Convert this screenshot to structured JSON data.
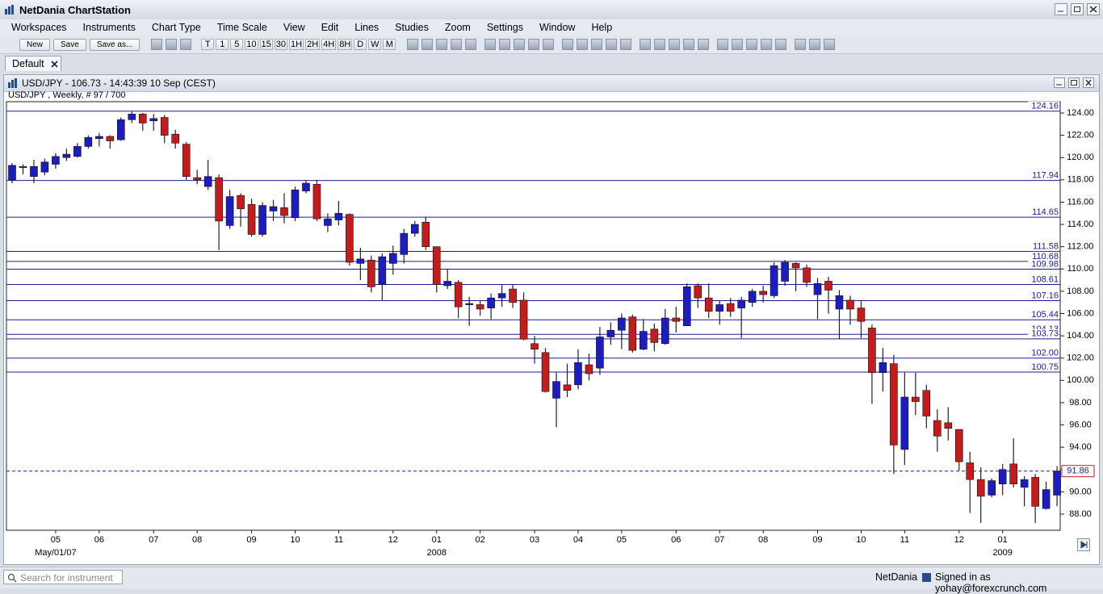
{
  "window": {
    "title": "NetDania ChartStation"
  },
  "menu": [
    "Workspaces",
    "Instruments",
    "Chart Type",
    "Time Scale",
    "View",
    "Edit",
    "Lines",
    "Studies",
    "Zoom",
    "Settings",
    "Window",
    "Help"
  ],
  "toolbar": {
    "buttons": [
      "New",
      "Save",
      "Save as..."
    ],
    "periods": [
      "T",
      "1",
      "5",
      "10",
      "15",
      "30",
      "1H",
      "2H",
      "4H",
      "8H",
      "D",
      "W",
      "M"
    ]
  },
  "tab": "Default",
  "chart_window": {
    "title": "USD/JPY - 106.73 - 14:43:39  10 Sep (CEST)"
  },
  "chart_data": {
    "type": "candlestick",
    "subtitle": "USD/JPY , Weekly, # 97 / 700",
    "up_color": "#1c1cc0",
    "down_color": "#c41c1c",
    "level_color": "#1c1c9a",
    "grid": false,
    "ylim": [
      86.55,
      124.87
    ],
    "yticks": [
      {
        "value": 88,
        "label": "88.00"
      },
      {
        "value": 90,
        "label": "90.00"
      },
      {
        "value": 92,
        "label": "92.00"
      },
      {
        "value": 94,
        "label": "94.00"
      },
      {
        "value": 96,
        "label": "96.00"
      },
      {
        "value": 98,
        "label": "98.00"
      },
      {
        "value": 100,
        "label": "100.00"
      },
      {
        "value": 102,
        "label": "102.00"
      },
      {
        "value": 104,
        "label": "104.00"
      },
      {
        "value": 106,
        "label": "106.00"
      },
      {
        "value": 108,
        "label": "108.00"
      },
      {
        "value": 110,
        "label": "110.00"
      },
      {
        "value": 112,
        "label": "112.00"
      },
      {
        "value": 114,
        "label": "114.00"
      },
      {
        "value": 116,
        "label": "116.00"
      },
      {
        "value": 118,
        "label": "118.00"
      },
      {
        "value": 120,
        "label": "120.00"
      },
      {
        "value": 122,
        "label": "122.00"
      },
      {
        "value": 124,
        "label": "124.00"
      }
    ],
    "levels": [
      124.16,
      117.94,
      114.65,
      111.58,
      110.68,
      109.98,
      108.61,
      107.16,
      105.44,
      104.13,
      103.73,
      {
        "value": 102,
        "label": "102.00"
      },
      100.75
    ],
    "current": 91.86,
    "categories": [
      null,
      null,
      null,
      null,
      "05",
      null,
      null,
      null,
      "06",
      null,
      null,
      null,
      null,
      "07",
      null,
      null,
      null,
      "08",
      null,
      null,
      null,
      null,
      "09",
      null,
      null,
      null,
      "10",
      null,
      null,
      null,
      "11",
      null,
      null,
      null,
      null,
      "12",
      null,
      null,
      null,
      "01",
      null,
      null,
      null,
      "02",
      null,
      null,
      null,
      null,
      "03",
      null,
      null,
      null,
      "04",
      null,
      null,
      null,
      "05",
      null,
      null,
      null,
      null,
      "06",
      null,
      null,
      null,
      "07",
      null,
      null,
      null,
      "08",
      null,
      null,
      null,
      null,
      "09",
      null,
      null,
      null,
      "10",
      null,
      null,
      null,
      "11",
      null,
      null,
      null,
      null,
      "12",
      null,
      null,
      null,
      "01",
      null,
      null,
      null,
      null,
      null
    ],
    "x_sublabels": [
      null,
      null,
      null,
      null,
      "May/01/07",
      null,
      null,
      null,
      null,
      null,
      null,
      null,
      null,
      null,
      null,
      null,
      null,
      null,
      null,
      null,
      null,
      null,
      null,
      null,
      null,
      null,
      null,
      null,
      null,
      null,
      null,
      null,
      null,
      null,
      null,
      null,
      null,
      null,
      null,
      "2008",
      null,
      null,
      null,
      null,
      null,
      null,
      null,
      null,
      null,
      null,
      null,
      null,
      null,
      null,
      null,
      null,
      null,
      null,
      null,
      null,
      null,
      null,
      null,
      null,
      null,
      null,
      null,
      null,
      null,
      null,
      null,
      null,
      null,
      null,
      null,
      null,
      null,
      null,
      null,
      null,
      null,
      null,
      null,
      null,
      null,
      null,
      null,
      null,
      null,
      null,
      null,
      "2009",
      null,
      null,
      null,
      null,
      null
    ],
    "open": [
      118.0,
      119.2,
      118.3,
      118.7,
      119.4,
      120.0,
      120.1,
      121.0,
      121.7,
      121.9,
      121.6,
      123.4,
      123.9,
      123.3,
      123.6,
      122.1,
      121.2,
      118.2,
      117.4,
      118.2,
      113.9,
      116.6,
      115.8,
      113.1,
      115.2,
      115.5,
      114.6,
      117.0,
      117.6,
      113.9,
      114.4,
      114.9,
      110.5,
      110.8,
      108.6,
      110.5,
      111.3,
      113.2,
      114.2,
      112.0,
      108.5,
      108.8,
      106.8,
      106.8,
      106.5,
      107.4,
      108.2,
      107.2,
      103.3,
      102.5,
      98.4,
      99.6,
      99.6,
      101.4,
      101.1,
      103.9,
      104.5,
      105.7,
      102.8,
      104.6,
      103.3,
      105.6,
      104.9,
      108.5,
      107.4,
      106.2,
      106.9,
      106.5,
      107.0,
      108.0,
      107.6,
      108.9,
      110.5,
      110.1,
      107.7,
      108.9,
      106.4,
      107.2,
      106.5,
      104.7,
      100.7,
      101.5,
      93.8,
      98.5,
      99.1,
      96.4,
      96.2,
      95.6,
      92.6,
      91.1,
      89.7,
      90.7,
      92.5,
      90.4,
      91.3,
      88.5,
      89.7
    ],
    "high": [
      119.5,
      119.4,
      119.8,
      119.9,
      120.4,
      120.8,
      121.3,
      122.0,
      122.2,
      122.0,
      123.6,
      124.16,
      124.0,
      123.9,
      123.8,
      122.5,
      121.4,
      118.9,
      119.8,
      118.5,
      117.1,
      116.8,
      116.3,
      116.0,
      116.2,
      116.8,
      117.4,
      118.0,
      118.0,
      115.0,
      116.1,
      115.0,
      111.9,
      111.2,
      111.4,
      112.1,
      113.6,
      114.3,
      114.7,
      112.0,
      110.0,
      109.0,
      107.5,
      107.2,
      107.8,
      108.6,
      108.6,
      107.9,
      104.0,
      102.9,
      100.7,
      101.5,
      102.8,
      102.4,
      104.8,
      105.2,
      106.0,
      105.9,
      105.5,
      105.1,
      106.4,
      106.6,
      108.7,
      108.7,
      108.7,
      107.2,
      107.4,
      107.5,
      108.2,
      108.5,
      110.6,
      110.8,
      110.6,
      110.4,
      109.2,
      109.3,
      108.1,
      107.6,
      107.2,
      105.0,
      102.9,
      102.3,
      100.7,
      100.7,
      99.6,
      97.4,
      97.6,
      95.6,
      93.6,
      92.2,
      91.2,
      92.5,
      94.8,
      91.4,
      91.6,
      90.9,
      92.3
    ],
    "low": [
      117.7,
      118.5,
      117.7,
      118.4,
      119.0,
      119.7,
      120.0,
      120.8,
      121.0,
      120.8,
      121.5,
      123.1,
      122.4,
      122.4,
      121.3,
      120.8,
      118.0,
      117.6,
      117.1,
      111.7,
      113.6,
      113.8,
      112.9,
      112.9,
      114.3,
      114.1,
      114.3,
      116.8,
      114.3,
      113.3,
      113.9,
      110.3,
      109.0,
      107.9,
      107.2,
      109.5,
      110.5,
      112.9,
      111.7,
      107.9,
      108.2,
      105.6,
      104.9,
      105.8,
      105.5,
      106.6,
      106.5,
      103.6,
      101.5,
      98.9,
      95.8,
      98.5,
      99.2,
      100.0,
      100.5,
      103.2,
      102.8,
      102.5,
      102.7,
      102.6,
      103.2,
      104.3,
      104.9,
      106.5,
      105.6,
      105.0,
      105.7,
      103.8,
      106.6,
      107.0,
      107.4,
      108.5,
      108.0,
      108.4,
      105.5,
      106.0,
      103.7,
      105.0,
      103.8,
      97.9,
      99.0,
      91.6,
      92.4,
      96.9,
      95.7,
      93.6,
      94.6,
      91.9,
      88.1,
      87.2,
      89.5,
      89.7,
      90.4,
      88.7,
      87.2,
      88.4,
      88.7
    ],
    "close": [
      119.3,
      119.1,
      119.2,
      119.6,
      120.1,
      120.3,
      121.0,
      121.8,
      121.9,
      121.5,
      123.4,
      123.9,
      123.1,
      123.5,
      122.0,
      121.3,
      118.3,
      118.0,
      118.3,
      114.3,
      116.5,
      115.4,
      113.1,
      115.7,
      115.6,
      114.8,
      117.1,
      117.7,
      114.5,
      114.5,
      115.0,
      110.6,
      110.9,
      108.4,
      111.1,
      111.4,
      113.2,
      114.0,
      112.0,
      108.6,
      108.9,
      106.6,
      106.9,
      106.4,
      107.4,
      107.8,
      107.0,
      103.7,
      102.8,
      99.0,
      99.9,
      99.1,
      101.6,
      100.6,
      103.9,
      104.5,
      105.6,
      102.7,
      104.4,
      103.4,
      105.6,
      105.3,
      108.4,
      107.4,
      106.2,
      106.8,
      106.2,
      107.2,
      108.0,
      107.7,
      110.3,
      110.6,
      110.1,
      108.8,
      108.7,
      108.1,
      107.6,
      106.4,
      105.3,
      100.7,
      101.6,
      94.2,
      98.5,
      98.1,
      96.8,
      95.0,
      95.7,
      92.7,
      91.1,
      89.6,
      91.0,
      92.0,
      90.7,
      91.1,
      88.7,
      90.2,
      91.86
    ]
  },
  "status": {
    "search": "Search for instrument",
    "brand": "NetDania",
    "user": "Signed in as yohay@forexcrunch.com"
  }
}
